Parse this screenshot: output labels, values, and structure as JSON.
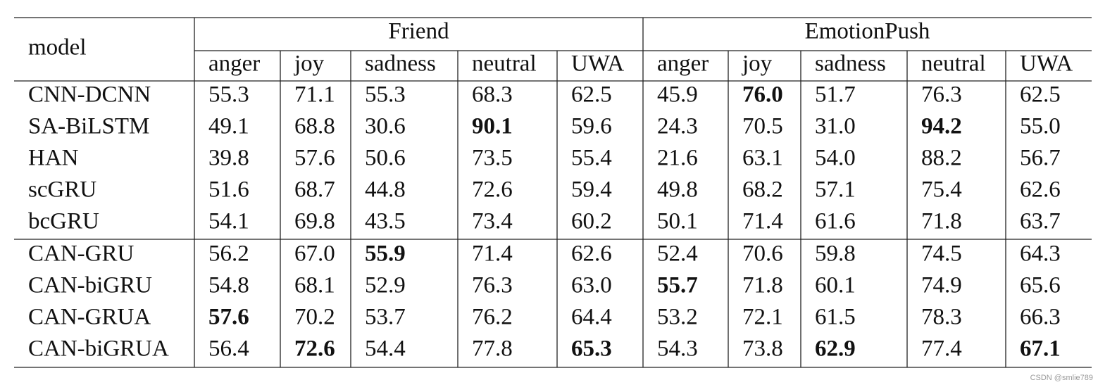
{
  "table": {
    "header": {
      "corner": "model",
      "groups": [
        {
          "label": "Friend",
          "columns": [
            "anger",
            "joy",
            "sadness",
            "neutral",
            "UWA"
          ]
        },
        {
          "label": "EmotionPush",
          "columns": [
            "anger",
            "joy",
            "sadness",
            "neutral",
            "UWA"
          ]
        }
      ]
    },
    "sections": [
      [
        {
          "model": "CNN-DCNN",
          "cells": [
            "55.3",
            "71.1",
            "55.3",
            "68.3",
            "62.5",
            "45.9",
            {
              "text": "76.0",
              "bold": true
            },
            "51.7",
            "76.3",
            "62.5"
          ]
        },
        {
          "model": "SA-BiLSTM",
          "cells": [
            "49.1",
            "68.8",
            "30.6",
            {
              "text": "90.1",
              "bold": true
            },
            "59.6",
            "24.3",
            "70.5",
            "31.0",
            {
              "text": "94.2",
              "bold": true
            },
            "55.0"
          ]
        },
        {
          "model": "HAN",
          "cells": [
            "39.8",
            "57.6",
            "50.6",
            "73.5",
            "55.4",
            "21.6",
            "63.1",
            "54.0",
            "88.2",
            "56.7"
          ]
        },
        {
          "model": "scGRU",
          "cells": [
            "51.6",
            "68.7",
            "44.8",
            "72.6",
            "59.4",
            "49.8",
            "68.2",
            "57.1",
            "75.4",
            "62.6"
          ]
        },
        {
          "model": "bcGRU",
          "cells": [
            "54.1",
            "69.8",
            "43.5",
            "73.4",
            "60.2",
            "50.1",
            "71.4",
            "61.6",
            "71.8",
            "63.7"
          ]
        }
      ],
      [
        {
          "model": "CAN-GRU",
          "cells": [
            "56.2",
            "67.0",
            {
              "text": "55.9",
              "bold": true
            },
            "71.4",
            "62.6",
            "52.4",
            "70.6",
            "59.8",
            "74.5",
            "64.3"
          ]
        },
        {
          "model": "CAN-biGRU",
          "cells": [
            "54.8",
            "68.1",
            "52.9",
            "76.3",
            "63.0",
            {
              "text": "55.7",
              "bold": true
            },
            "71.8",
            "60.1",
            "74.9",
            "65.6"
          ]
        },
        {
          "model": "CAN-GRUA",
          "cells": [
            {
              "text": "57.6",
              "bold": true
            },
            "70.2",
            "53.7",
            "76.2",
            "64.4",
            "53.2",
            "72.1",
            "61.5",
            "78.3",
            "66.3"
          ]
        },
        {
          "model": "CAN-biGRUA",
          "cells": [
            "56.4",
            {
              "text": "72.6",
              "bold": true
            },
            "54.4",
            "77.8",
            {
              "text": "65.3",
              "bold": true
            },
            "54.3",
            "73.8",
            {
              "text": "62.9",
              "bold": true
            },
            "77.4",
            {
              "text": "67.1",
              "bold": true
            }
          ]
        }
      ]
    ]
  },
  "watermark": "CSDN @smlie789"
}
